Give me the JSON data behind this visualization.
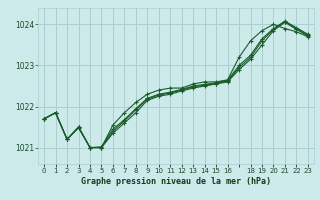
{
  "title": "Graphe pression niveau de la mer (hPa)",
  "bg_color": "#cceaea",
  "grid_color": "#aacece",
  "line_color": "#1a5c2a",
  "xlim": [
    -0.5,
    23.5
  ],
  "ylim": [
    1020.6,
    1024.4
  ],
  "yticks": [
    1021,
    1022,
    1023,
    1024
  ],
  "xtick_labels": [
    "0",
    "1",
    "2",
    "3",
    "4",
    "5",
    "6",
    "7",
    "8",
    "9",
    "10",
    "11",
    "12",
    "13",
    "14",
    "15",
    "16",
    "",
    "18",
    "19",
    "20",
    "21",
    "22",
    "23"
  ],
  "series": [
    [
      1021.7,
      1021.85,
      1021.2,
      1021.5,
      1021.0,
      1021.0,
      1021.55,
      1021.85,
      1022.1,
      1022.3,
      1022.4,
      1022.45,
      1022.45,
      1022.55,
      1022.6,
      1022.6,
      1022.65,
      1023.2,
      1023.6,
      1023.85,
      1024.0,
      1023.9,
      1023.82,
      1023.7
    ],
    [
      1021.7,
      1021.85,
      1021.2,
      1021.5,
      1021.0,
      1021.0,
      1021.35,
      1021.6,
      1021.85,
      1022.15,
      1022.25,
      1022.3,
      1022.38,
      1022.45,
      1022.5,
      1022.55,
      1022.6,
      1022.9,
      1023.15,
      1023.5,
      1023.85,
      1024.05,
      1023.88,
      1023.72
    ],
    [
      1021.7,
      1021.85,
      1021.2,
      1021.5,
      1021.0,
      1021.0,
      1021.4,
      1021.65,
      1021.92,
      1022.18,
      1022.28,
      1022.33,
      1022.4,
      1022.48,
      1022.52,
      1022.56,
      1022.62,
      1022.95,
      1023.2,
      1023.6,
      1023.88,
      1024.07,
      1023.9,
      1023.74
    ],
    [
      1021.7,
      1021.85,
      1021.2,
      1021.48,
      1021.0,
      1021.02,
      1021.45,
      1021.68,
      1021.95,
      1022.2,
      1022.3,
      1022.35,
      1022.42,
      1022.5,
      1022.54,
      1022.58,
      1022.64,
      1023.0,
      1023.25,
      1023.65,
      1023.9,
      1024.08,
      1023.92,
      1023.76
    ]
  ]
}
